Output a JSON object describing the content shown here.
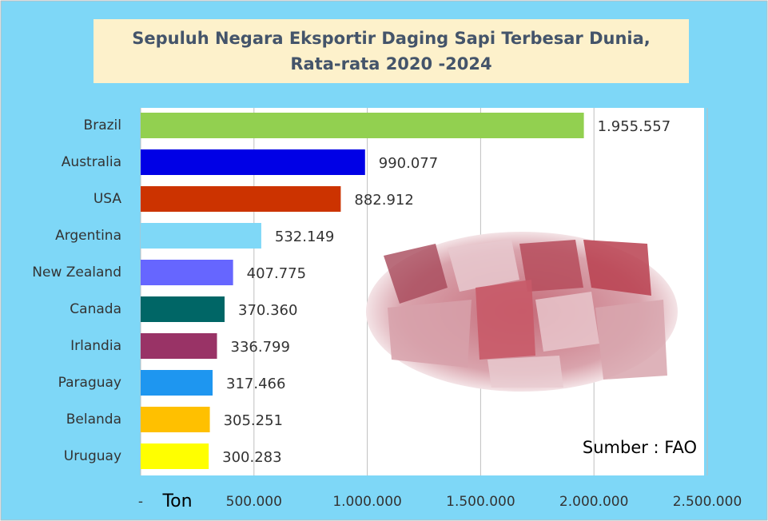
{
  "chart_data": {
    "type": "bar",
    "orientation": "horizontal",
    "title": "Sepuluh Negara Eksportir Daging Sapi Terbesar Dunia, Rata-rata 2020 -2024",
    "x_label": "Ton",
    "annotation": "Sumber : FAO",
    "categories": [
      "Brazil",
      "Australia",
      "USA",
      "Argentina",
      "New Zealand",
      "Canada",
      "Irlandia",
      "Paraguay",
      "Belanda",
      "Uruguay"
    ],
    "values": [
      1955557,
      990077,
      882912,
      532149,
      407775,
      370360,
      336799,
      317466,
      305251,
      300283
    ],
    "value_labels": [
      "1.955.557",
      "990.077",
      "882.912",
      "532.149",
      "407.775",
      "370.360",
      "336.799",
      "317.466",
      "305.251",
      "300.283"
    ],
    "colors": [
      "#92d050",
      "#0000e6",
      "#cc3300",
      "#7fd8f7",
      "#6666ff",
      "#006666",
      "#993366",
      "#1e96f0",
      "#ffc000",
      "#ffff00"
    ],
    "xlim": [
      0,
      2500000
    ],
    "xticks": [
      {
        "value": 0,
        "label": "-"
      },
      {
        "value": 500000,
        "label": "500.000"
      },
      {
        "value": 1000000,
        "label": "1.000.000"
      },
      {
        "value": 1500000,
        "label": "1.500.000"
      },
      {
        "value": 2000000,
        "label": "2.000.000"
      },
      {
        "value": 2500000,
        "label": "2.500.000"
      }
    ],
    "grid": true
  }
}
